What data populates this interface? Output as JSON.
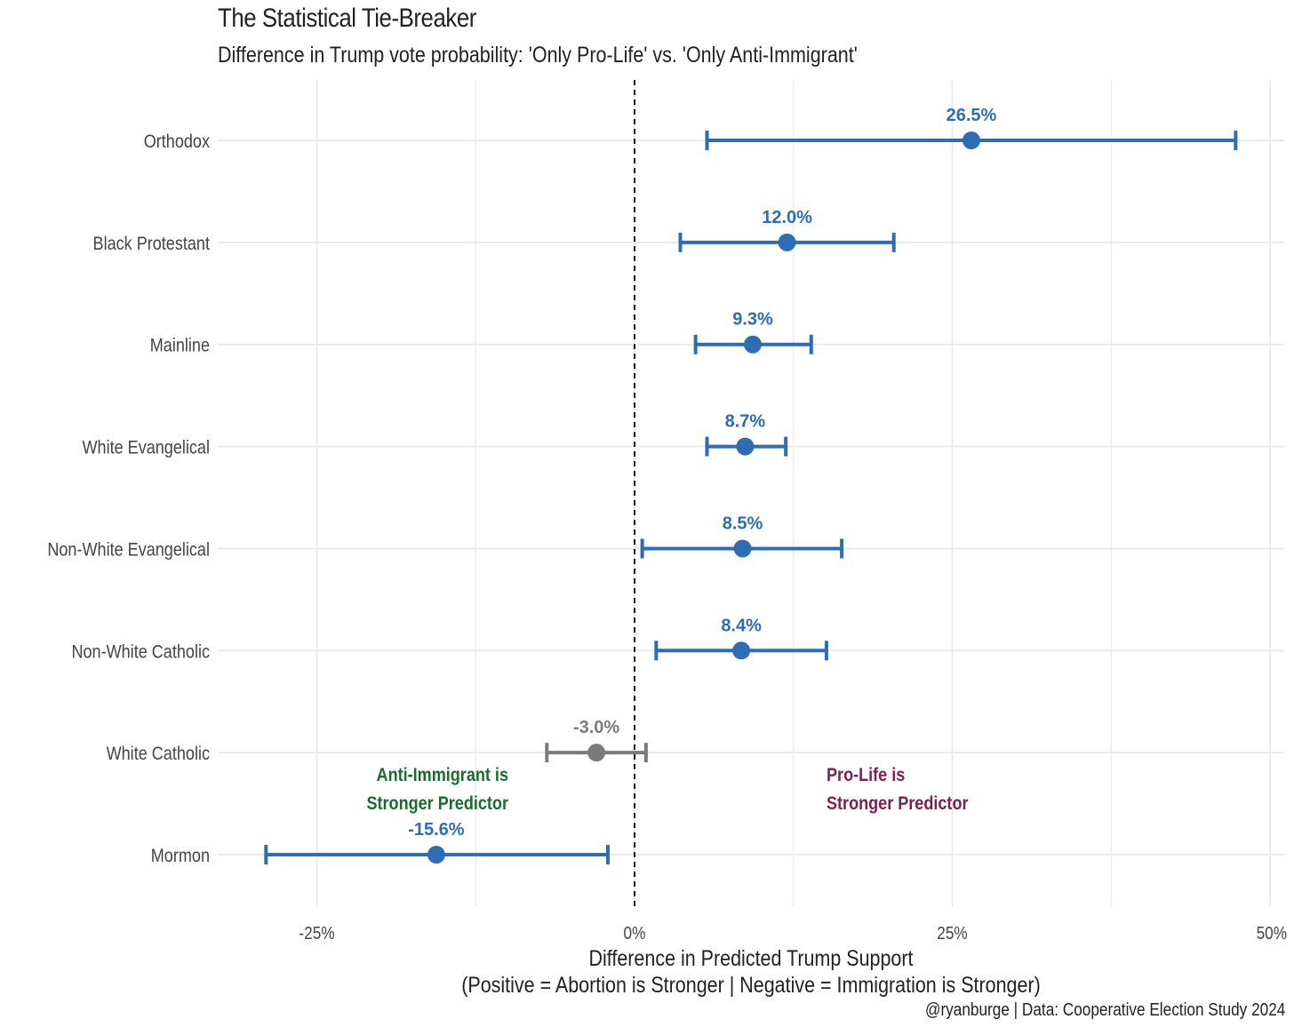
{
  "chart_data": {
    "type": "dot-errorbar",
    "title": "The Statistical Tie-Breaker",
    "subtitle": "Difference in Trump vote probability: 'Only Pro-Life' vs. 'Only Anti-Immigrant'",
    "xlabel_line1": "Difference in Predicted Trump Support",
    "xlabel_line2": "(Positive = Abortion is Stronger | Negative = Immigration is Stronger)",
    "caption": "@ryanburge | Data: Cooperative Election Study 2024",
    "xlim": [
      -35,
      51
    ],
    "xticks": [
      {
        "value": -25,
        "label": "-25%"
      },
      {
        "value": 0,
        "label": "0%"
      },
      {
        "value": 25,
        "label": "25%"
      },
      {
        "value": 50,
        "label": "50%"
      }
    ],
    "reference_line": 0,
    "series": [
      {
        "category": "Orthodox",
        "estimate": 26.5,
        "low": 5.7,
        "high": 47.3,
        "label": "26.5%",
        "significant": true
      },
      {
        "category": "Black Protestant",
        "estimate": 12.0,
        "low": 3.6,
        "high": 20.4,
        "label": "12.0%",
        "significant": true
      },
      {
        "category": "Mainline",
        "estimate": 9.3,
        "low": 4.8,
        "high": 13.9,
        "label": "9.3%",
        "significant": true
      },
      {
        "category": "White Evangelical",
        "estimate": 8.7,
        "low": 5.7,
        "high": 11.9,
        "label": "8.7%",
        "significant": true
      },
      {
        "category": "Non-White Evangelical",
        "estimate": 8.5,
        "low": 0.6,
        "high": 16.3,
        "label": "8.5%",
        "significant": true
      },
      {
        "category": "Non-White Catholic",
        "estimate": 8.4,
        "low": 1.7,
        "high": 15.1,
        "label": "8.4%",
        "significant": true
      },
      {
        "category": "White Catholic",
        "estimate": -3.0,
        "low": -6.9,
        "high": 0.9,
        "label": "-3.0%",
        "significant": false
      },
      {
        "category": "Mormon",
        "estimate": -15.6,
        "low": -29.0,
        "high": -2.1,
        "label": "-15.6%",
        "significant": true
      }
    ],
    "annotations": [
      {
        "side": "left",
        "line1": "Anti-Immigrant is",
        "line2": "Stronger Predictor"
      },
      {
        "side": "right",
        "line1": "Pro-Life is",
        "line2": "Stronger Predictor"
      }
    ],
    "colors": {
      "significant": "#2e6db4",
      "not_significant": "#7a7a7a",
      "left_annotation": "#1a6b2e",
      "right_annotation": "#7a1f52",
      "grid": "#e8e8e8",
      "axis_text": "#444444"
    }
  }
}
